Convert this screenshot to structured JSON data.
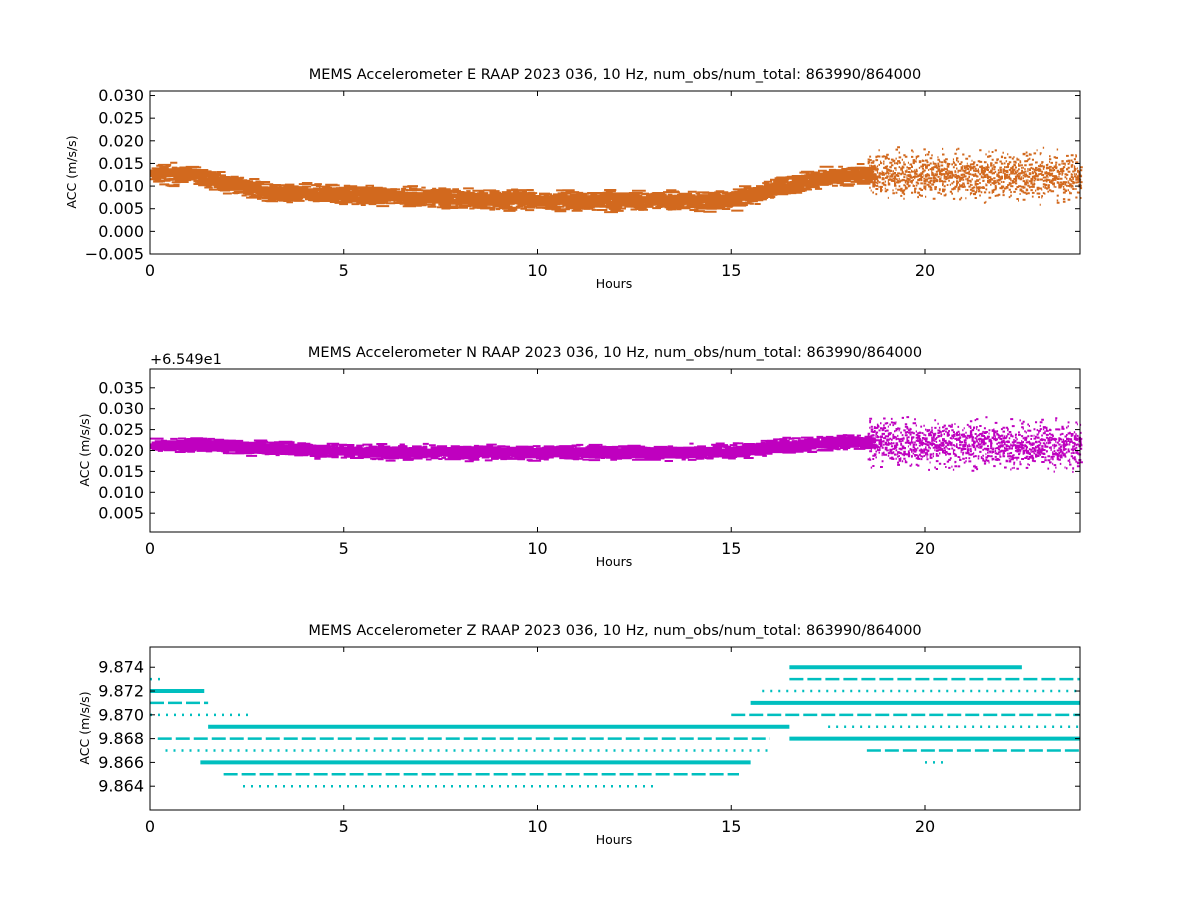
{
  "chart_data": [
    {
      "type": "scatter",
      "title": "MEMS Accelerometer E RAAP 2023 036, 10 Hz, num_obs/num_total: 863990/864000",
      "xlabel": "Hours",
      "ylabel": "ACC (m/s/s)",
      "offset_label": "",
      "color": "#d2691e",
      "xlim": [
        0,
        24
      ],
      "ylim": [
        -0.005,
        0.031
      ],
      "x_ticks": [
        0,
        5,
        10,
        15,
        20
      ],
      "y_ticks": [
        -0.005,
        0.0,
        0.005,
        0.01,
        0.015,
        0.02,
        0.025,
        0.03
      ],
      "y_tick_labels": [
        "−0.005",
        "0.000",
        "0.005",
        "0.010",
        "0.015",
        "0.020",
        "0.025",
        "0.030"
      ],
      "band": [
        [
          0,
          0.0127
        ],
        [
          1,
          0.0125
        ],
        [
          2,
          0.0105
        ],
        [
          3,
          0.0085
        ],
        [
          5,
          0.008
        ],
        [
          7,
          0.0075
        ],
        [
          9,
          0.007
        ],
        [
          10,
          0.0068
        ],
        [
          12,
          0.0067
        ],
        [
          14,
          0.0067
        ],
        [
          15,
          0.007
        ],
        [
          16,
          0.0095
        ],
        [
          17,
          0.0115
        ],
        [
          18,
          0.0125
        ],
        [
          19,
          0.0125
        ],
        [
          24,
          0.012
        ]
      ],
      "quiet_spread": 0.0028,
      "noisy_spread": 0.007,
      "noise_start": 18.5
    },
    {
      "type": "scatter",
      "title": "MEMS Accelerometer N RAAP 2023 036, 10 Hz, num_obs/num_total: 863990/864000",
      "xlabel": "Hours",
      "ylabel": "ACC (m/s/s)",
      "offset_label": "+6.549e1",
      "color": "#bf00bf",
      "xlim": [
        0,
        24
      ],
      "ylim": [
        0.0005,
        0.0395
      ],
      "x_ticks": [
        0,
        5,
        10,
        15,
        20
      ],
      "y_ticks": [
        0.005,
        0.01,
        0.015,
        0.02,
        0.025,
        0.03,
        0.035
      ],
      "y_tick_labels": [
        "0.005",
        "0.010",
        "0.015",
        "0.020",
        "0.025",
        "0.030",
        "0.035"
      ],
      "band": [
        [
          0,
          0.0215
        ],
        [
          2,
          0.021
        ],
        [
          4,
          0.02
        ],
        [
          6,
          0.0195
        ],
        [
          10,
          0.0195
        ],
        [
          14,
          0.0195
        ],
        [
          15,
          0.0198
        ],
        [
          16,
          0.021
        ],
        [
          17,
          0.0215
        ],
        [
          18,
          0.022
        ],
        [
          24,
          0.021
        ]
      ],
      "quiet_spread": 0.0022,
      "noisy_spread": 0.0075,
      "noise_start": 18.5
    },
    {
      "type": "scatter",
      "title": "MEMS Accelerometer Z RAAP 2023 036, 10 Hz, num_obs/num_total: 863990/864000",
      "xlabel": "Hours",
      "ylabel": "ACC (m/s/s)",
      "offset_label": "",
      "color": "#00bfbf",
      "xlim": [
        0,
        24
      ],
      "ylim": [
        9.862,
        9.8757
      ],
      "x_ticks": [
        0,
        5,
        10,
        15,
        20
      ],
      "y_ticks": [
        9.864,
        9.866,
        9.868,
        9.87,
        9.872,
        9.874
      ],
      "y_tick_labels": [
        "9.864",
        "9.866",
        "9.868",
        "9.870",
        "9.872",
        "9.874"
      ],
      "quantized_levels": [
        {
          "y": 9.873,
          "start": 0,
          "end": 0.3
        },
        {
          "y": 9.872,
          "start": 0,
          "end": 1.4
        },
        {
          "y": 9.871,
          "start": 0,
          "end": 1.5
        },
        {
          "y": 9.87,
          "start": 0,
          "end": 2.6
        },
        {
          "y": 9.869,
          "start": 1.5,
          "end": 16.5
        },
        {
          "y": 9.868,
          "start": 0.2,
          "end": 16.0
        },
        {
          "y": 9.867,
          "start": 0.4,
          "end": 16.0
        },
        {
          "y": 9.866,
          "start": 1.3,
          "end": 15.5
        },
        {
          "y": 9.865,
          "start": 1.9,
          "end": 15.2
        },
        {
          "y": 9.864,
          "start": 2.4,
          "end": 13.0
        },
        {
          "y": 9.874,
          "start": 16.5,
          "end": 22.5
        },
        {
          "y": 9.873,
          "start": 16.5,
          "end": 24
        },
        {
          "y": 9.872,
          "start": 15.8,
          "end": 24
        },
        {
          "y": 9.871,
          "start": 15.5,
          "end": 24
        },
        {
          "y": 9.87,
          "start": 15.0,
          "end": 24
        },
        {
          "y": 9.869,
          "start": 17.5,
          "end": 24
        },
        {
          "y": 9.868,
          "start": 16.5,
          "end": 24
        },
        {
          "y": 9.867,
          "start": 18.5,
          "end": 24
        },
        {
          "y": 9.866,
          "start": 20.0,
          "end": 20.5
        }
      ]
    }
  ]
}
